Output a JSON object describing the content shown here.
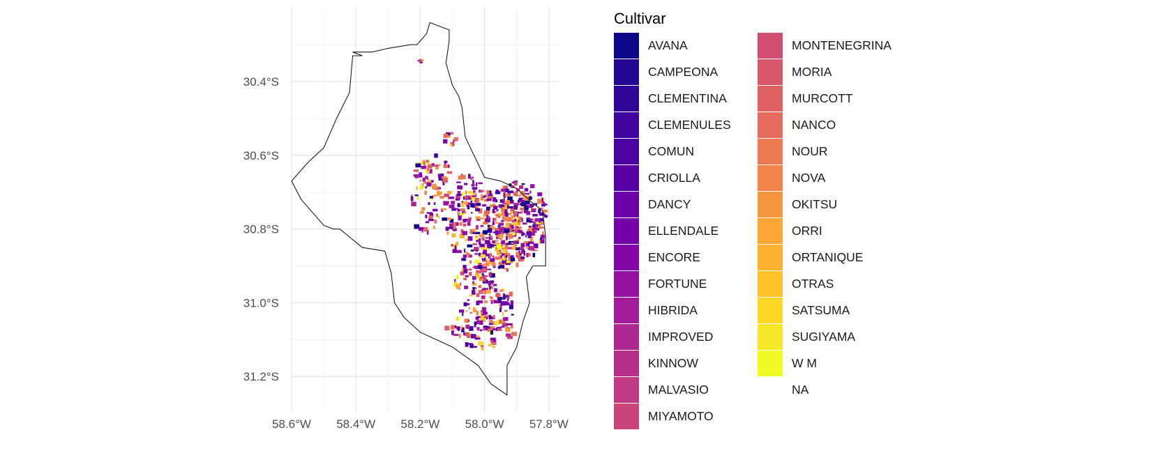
{
  "map": {
    "axis_x_labels": [
      "58.6°W",
      "58.4°W",
      "58.2°W",
      "58.0°W",
      "57.8°W"
    ],
    "axis_y_labels": [
      "30.4°S",
      "30.6°S",
      "30.8°S",
      "31.0°S",
      "31.2°S"
    ],
    "x_breaks": [
      -58.6,
      -58.4,
      -58.2,
      -58.0,
      -57.8
    ],
    "y_breaks": [
      -30.4,
      -30.6,
      -30.8,
      -31.0,
      -31.2
    ],
    "x_range": [
      -58.62,
      -57.78
    ],
    "y_range": [
      -30.22,
      -31.29
    ],
    "boundary_outline": [
      [
        -58.11,
        -30.26
      ],
      [
        -58.17,
        -30.24
      ],
      [
        -58.18,
        -30.27
      ],
      [
        -58.21,
        -30.3
      ],
      [
        -58.23,
        -30.3
      ],
      [
        -58.3,
        -30.31
      ],
      [
        -58.35,
        -30.32
      ],
      [
        -58.41,
        -30.32
      ],
      [
        -58.38,
        -30.33
      ],
      [
        -58.41,
        -30.33
      ],
      [
        -58.42,
        -30.43
      ],
      [
        -58.46,
        -30.5
      ],
      [
        -58.5,
        -30.58
      ],
      [
        -58.55,
        -30.62
      ],
      [
        -58.6,
        -30.67
      ],
      [
        -58.57,
        -30.72
      ],
      [
        -58.5,
        -30.79
      ],
      [
        -58.47,
        -30.8
      ],
      [
        -58.45,
        -30.8
      ],
      [
        -58.38,
        -30.85
      ],
      [
        -58.31,
        -30.86
      ],
      [
        -58.29,
        -30.92
      ],
      [
        -58.28,
        -31.0
      ],
      [
        -58.25,
        -31.04
      ],
      [
        -58.2,
        -31.08
      ],
      [
        -58.1,
        -31.12
      ],
      [
        -58.02,
        -31.17
      ],
      [
        -57.98,
        -31.22
      ],
      [
        -57.93,
        -31.25
      ],
      [
        -57.93,
        -31.17
      ],
      [
        -57.9,
        -31.12
      ],
      [
        -57.88,
        -31.05
      ],
      [
        -57.86,
        -31.0
      ],
      [
        -57.87,
        -30.93
      ],
      [
        -57.85,
        -30.9
      ],
      [
        -57.81,
        -30.9
      ],
      [
        -57.81,
        -30.82
      ],
      [
        -57.82,
        -30.75
      ],
      [
        -57.85,
        -30.73
      ],
      [
        -57.9,
        -30.69
      ],
      [
        -57.95,
        -30.67
      ],
      [
        -58.0,
        -30.66
      ],
      [
        -58.06,
        -30.55
      ],
      [
        -58.07,
        -30.47
      ],
      [
        -58.08,
        -30.44
      ],
      [
        -58.1,
        -30.41
      ],
      [
        -58.12,
        -30.35
      ],
      [
        -58.11,
        -30.29
      ],
      [
        -58.11,
        -30.26
      ]
    ]
  },
  "legend": {
    "title": "Cultivar",
    "items": [
      {
        "label": "AVANA",
        "color": "#0d0887"
      },
      {
        "label": "CAMPEONA",
        "color": "#220690"
      },
      {
        "label": "CLEMENTINA",
        "color": "#310597"
      },
      {
        "label": "CLEMENULES",
        "color": "#40049f"
      },
      {
        "label": "COMUN",
        "color": "#4c02a1"
      },
      {
        "label": "CRIOLLA",
        "color": "#5901a5"
      },
      {
        "label": "DANCY",
        "color": "#6a00a8"
      },
      {
        "label": "ELLENDALE",
        "color": "#7701a8"
      },
      {
        "label": "ENCORE",
        "color": "#8506a6"
      },
      {
        "label": "FORTUNE",
        "color": "#9511a1"
      },
      {
        "label": "HIBRIDA",
        "color": "#a11b9b"
      },
      {
        "label": "IMPROVED",
        "color": "#ad2793"
      },
      {
        "label": "KINNOW",
        "color": "#b6308b"
      },
      {
        "label": "MALVASIO",
        "color": "#c03a83"
      },
      {
        "label": "MIYAMOTO",
        "color": "#c9447a"
      },
      {
        "label": "MONTENEGRINA",
        "color": "#d04f70"
      },
      {
        "label": "MORIA",
        "color": "#d8576b"
      },
      {
        "label": "MURCOTT",
        "color": "#df6263"
      },
      {
        "label": "NANCO",
        "color": "#e56b5d"
      },
      {
        "label": "NOUR",
        "color": "#ed7953"
      },
      {
        "label": "NOVA",
        "color": "#f2844b"
      },
      {
        "label": "OKITSU",
        "color": "#f89540"
      },
      {
        "label": "ORRI",
        "color": "#fca636"
      },
      {
        "label": "ORTANIQUE",
        "color": "#fcb12e"
      },
      {
        "label": "OTRAS",
        "color": "#fdc328"
      },
      {
        "label": "SATSUMA",
        "color": "#fad824"
      },
      {
        "label": "SUGIYAMA",
        "color": "#f4e828"
      },
      {
        "label": "W M",
        "color": "#f0f921"
      },
      {
        "label": "NA",
        "color": ""
      }
    ]
  }
}
